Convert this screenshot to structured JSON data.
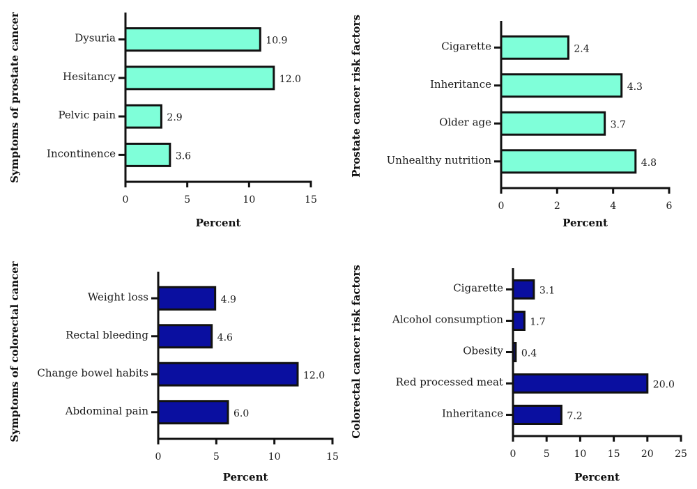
{
  "chart_data": [
    {
      "type": "bar",
      "orientation": "horizontal",
      "title": "",
      "categories": [
        "Dysuria",
        "Hesitancy",
        "Pelvic pain",
        "Incontinence"
      ],
      "values": [
        10.9,
        12.0,
        2.9,
        3.6
      ],
      "value_labels": [
        "10.9",
        "12.0",
        "2.9",
        "3.6"
      ],
      "xlabel": "Percent",
      "ylabel": "Symptoms of prostate cancer",
      "xlim": [
        0,
        15
      ],
      "xticks": [
        0,
        5,
        10,
        15
      ],
      "bar_color": "#7fffd9",
      "grid": false
    },
    {
      "type": "bar",
      "orientation": "horizontal",
      "title": "",
      "categories": [
        "Cigarette",
        "Inheritance",
        "Older age",
        "Unhealthy nutrition"
      ],
      "values": [
        2.4,
        4.3,
        3.7,
        4.8
      ],
      "value_labels": [
        "2.4",
        "4.3",
        "3.7",
        "4.8"
      ],
      "xlabel": "Percent",
      "ylabel": "Prostate cancer risk factors",
      "xlim": [
        0,
        6
      ],
      "xticks": [
        0,
        2,
        4,
        6
      ],
      "bar_color": "#7fffd9",
      "grid": false
    },
    {
      "type": "bar",
      "orientation": "horizontal",
      "title": "",
      "categories": [
        "Weight loss",
        "Rectal bleeding",
        "Change bowel habits",
        "Abdominal pain"
      ],
      "values": [
        4.9,
        4.6,
        12.0,
        6.0
      ],
      "value_labels": [
        "4.9",
        "4.6",
        "12.0",
        "6.0"
      ],
      "xlabel": "Percent",
      "ylabel": "Symptoms of colorectal cancer",
      "xlim": [
        0,
        15
      ],
      "xticks": [
        0,
        5,
        10,
        15
      ],
      "bar_color": "#0a0fa0",
      "grid": false
    },
    {
      "type": "bar",
      "orientation": "horizontal",
      "title": "",
      "categories": [
        "Cigarette",
        "Alcohol consumption",
        "Obesity",
        "Red processed meat",
        "Inheritance"
      ],
      "values": [
        3.1,
        1.7,
        0.4,
        20.0,
        7.2
      ],
      "value_labels": [
        "3.1",
        "1.7",
        "0.4",
        "20.0",
        "7.2"
      ],
      "xlabel": "Percent",
      "ylabel": "Colorectal cancer risk factors",
      "xlim": [
        0,
        25
      ],
      "xticks": [
        0,
        5,
        10,
        15,
        20,
        25
      ],
      "bar_color": "#0a0fa0",
      "grid": false
    }
  ]
}
